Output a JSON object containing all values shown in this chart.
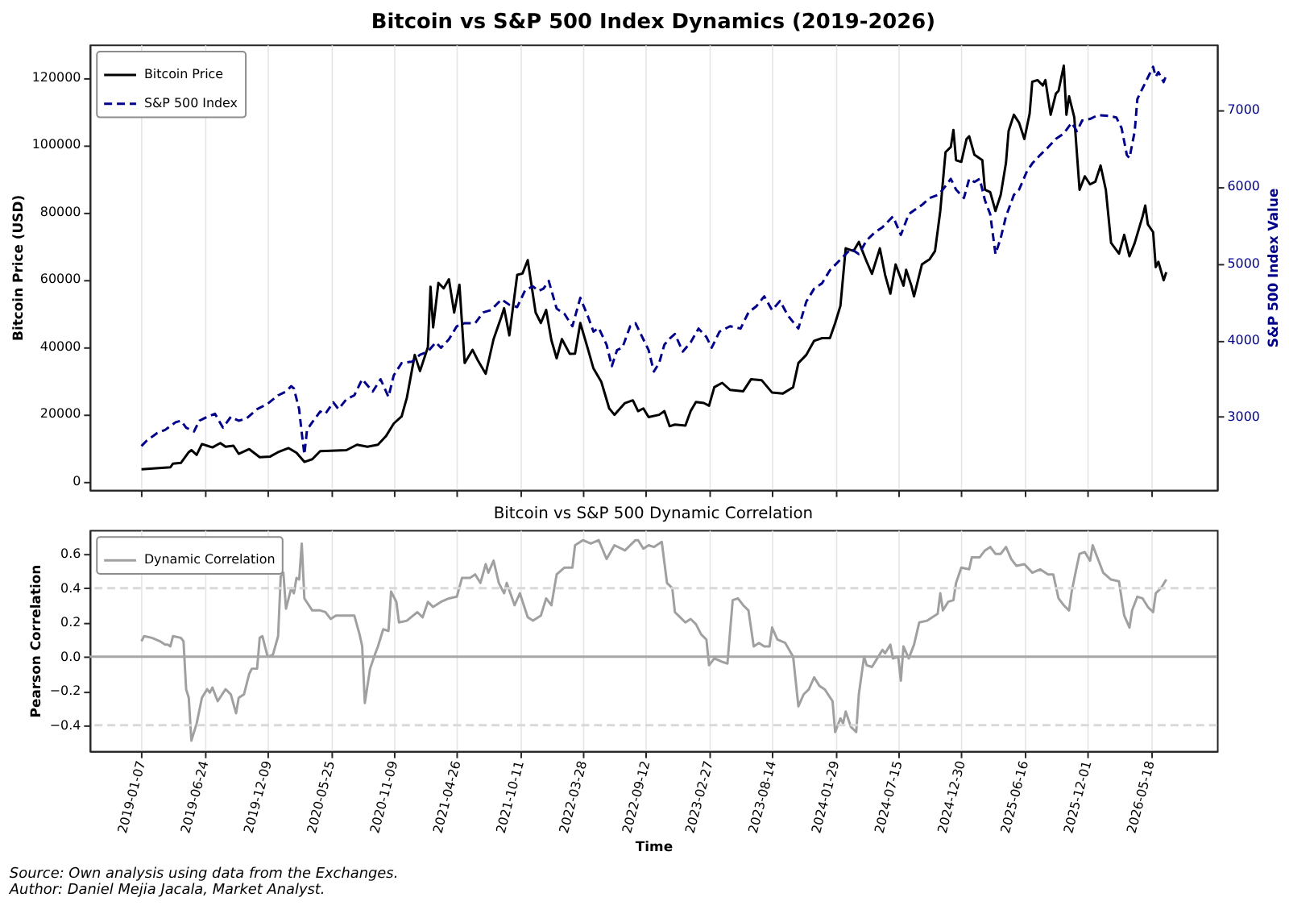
{
  "chart_data": [
    {
      "type": "line",
      "title": "Bitcoin vs S&P 500 Index Dynamics (2019-2026)",
      "ylabel": "Bitcoin Price (USD)",
      "y2label": "S&P 500 Index Value",
      "xlim": [
        "2018-08-22",
        "2026-11-11"
      ],
      "xticks": [
        "2019-01-07",
        "2019-06-24",
        "2019-12-09",
        "2020-05-25",
        "2020-11-09",
        "2021-04-26",
        "2021-10-11",
        "2022-03-28",
        "2022-09-12",
        "2023-02-27",
        "2023-08-14",
        "2024-01-29",
        "2024-07-15",
        "2024-12-30",
        "2025-06-16",
        "2025-12-01",
        "2026-05-18"
      ],
      "ylim": [
        -2600,
        129800
      ],
      "yticks": [
        0,
        20000,
        40000,
        60000,
        80000,
        100000,
        120000
      ],
      "y2lim": [
        2050,
        7850
      ],
      "y2ticks": [
        3000,
        4000,
        5000,
        6000,
        7000
      ],
      "grid": "x",
      "legend": "top left",
      "tick_labels": "y",
      "series": [
        {
          "name": "Bitcoin Price",
          "color": "#000000",
          "line_style": "solid",
          "x": [
            "2019-01-07",
            "2019-03-25",
            "2019-04-01",
            "2019-04-22",
            "2019-05-13",
            "2019-05-20",
            "2019-06-03",
            "2019-06-17",
            "2019-07-01",
            "2019-07-15",
            "2019-08-05",
            "2019-08-19",
            "2019-09-09",
            "2019-09-23",
            "2019-10-21",
            "2019-11-18",
            "2019-12-16",
            "2020-01-06",
            "2020-02-03",
            "2020-02-24",
            "2020-03-16",
            "2020-04-06",
            "2020-04-27",
            "2020-05-25",
            "2020-07-06",
            "2020-08-03",
            "2020-08-31",
            "2020-09-28",
            "2020-10-19",
            "2020-11-09",
            "2020-11-30",
            "2020-12-14",
            "2021-01-04",
            "2021-01-18",
            "2021-02-08",
            "2021-02-15",
            "2021-02-22",
            "2021-03-08",
            "2021-03-22",
            "2021-04-05",
            "2021-04-19",
            "2021-05-03",
            "2021-05-17",
            "2021-06-07",
            "2021-06-21",
            "2021-07-12",
            "2021-08-02",
            "2021-08-23",
            "2021-08-30",
            "2021-09-13",
            "2021-10-04",
            "2021-10-18",
            "2021-11-01",
            "2021-11-22",
            "2021-12-06",
            "2021-12-20",
            "2022-01-03",
            "2022-01-17",
            "2022-01-31",
            "2022-02-21",
            "2022-03-07",
            "2022-03-21",
            "2022-04-11",
            "2022-04-25",
            "2022-05-16",
            "2022-06-06",
            "2022-06-20",
            "2022-07-18",
            "2022-08-08",
            "2022-08-22",
            "2022-09-05",
            "2022-09-19",
            "2022-10-17",
            "2022-10-31",
            "2022-11-14",
            "2022-11-28",
            "2022-12-26",
            "2023-01-09",
            "2023-01-23",
            "2023-02-13",
            "2023-02-27",
            "2023-03-13",
            "2023-04-03",
            "2023-04-24",
            "2023-05-29",
            "2023-06-19",
            "2023-07-17",
            "2023-08-14",
            "2023-09-11",
            "2023-10-09",
            "2023-10-23",
            "2023-11-13",
            "2023-12-04",
            "2023-12-25",
            "2024-01-15",
            "2024-01-29",
            "2024-02-12",
            "2024-02-26",
            "2024-03-18",
            "2024-04-01",
            "2024-04-22",
            "2024-05-06",
            "2024-05-27",
            "2024-06-10",
            "2024-06-24",
            "2024-07-08",
            "2024-07-29",
            "2024-08-05",
            "2024-08-19",
            "2024-08-26",
            "2024-09-16",
            "2024-10-07",
            "2024-10-21",
            "2024-11-04",
            "2024-11-18",
            "2024-12-02",
            "2024-12-09",
            "2024-12-16",
            "2024-12-30",
            "2025-01-13",
            "2025-01-20",
            "2025-02-03",
            "2025-02-24",
            "2025-03-03",
            "2025-03-17",
            "2025-03-31",
            "2025-04-14",
            "2025-04-28",
            "2025-05-05",
            "2025-05-19",
            "2025-06-02",
            "2025-06-16",
            "2025-06-30",
            "2025-07-07",
            "2025-07-21",
            "2025-08-04",
            "2025-08-11",
            "2025-08-25",
            "2025-09-08",
            "2025-09-15",
            "2025-09-29",
            "2025-10-06",
            "2025-10-13",
            "2025-10-27",
            "2025-11-10",
            "2025-11-24",
            "2025-12-08",
            "2025-12-22",
            "2026-01-05",
            "2026-01-19",
            "2026-02-02",
            "2026-02-23",
            "2026-03-09",
            "2026-03-23",
            "2026-04-06",
            "2026-04-27",
            "2026-05-04",
            "2026-05-11",
            "2026-05-25",
            "2026-06-01",
            "2026-06-08",
            "2026-06-22",
            "2026-06-29"
          ],
          "values": [
            3500,
            4100,
            5200,
            5400,
            8600,
            9200,
            7800,
            11000,
            10500,
            10000,
            11300,
            10200,
            10500,
            8100,
            9500,
            7100,
            7300,
            8600,
            9800,
            8400,
            5700,
            6500,
            8900,
            9000,
            9200,
            10800,
            10200,
            10800,
            13300,
            17100,
            19200,
            24800,
            37500,
            32700,
            39800,
            57800,
            45700,
            58900,
            57300,
            60000,
            50100,
            58400,
            35100,
            39000,
            35900,
            31900,
            42200,
            48900,
            51400,
            43300,
            61300,
            61700,
            65700,
            50100,
            47000,
            50900,
            41900,
            36500,
            42200,
            37800,
            37900,
            47000,
            39000,
            33500,
            29500,
            21600,
            19700,
            23200,
            24000,
            20800,
            21600,
            19000,
            19700,
            20800,
            16300,
            16800,
            16500,
            20800,
            23500,
            23200,
            22400,
            27900,
            29200,
            27100,
            26700,
            30300,
            30000,
            26300,
            26000,
            27900,
            35100,
            37500,
            41700,
            42500,
            42500,
            47000,
            52100,
            69200,
            68400,
            71100,
            65200,
            61600,
            69200,
            61300,
            55700,
            64400,
            58100,
            62800,
            58100,
            54900,
            64400,
            66000,
            68400,
            80300,
            97800,
            99300,
            104400,
            95400,
            94900,
            101700,
            102500,
            97000,
            95400,
            86600,
            85900,
            80300,
            85100,
            94600,
            104100,
            108900,
            106500,
            101700,
            109200,
            118700,
            119200,
            117600,
            119200,
            108900,
            115200,
            116000,
            123500,
            108900,
            114400,
            108100,
            86600,
            90600,
            88200,
            89000,
            93800,
            86600,
            70800,
            67600,
            73200,
            66800,
            70800,
            78700,
            81900,
            76300,
            74000,
            63600,
            65200,
            59700,
            62100
          ]
        },
        {
          "name": "S&P 500 Index",
          "color": "#00008b",
          "line_style": "dashed",
          "axis": "y2",
          "x": [
            "2019-01-07",
            "2019-01-21",
            "2019-02-18",
            "2019-03-11",
            "2019-03-25",
            "2019-04-08",
            "2019-04-22",
            "2019-05-06",
            "2019-05-27",
            "2019-06-10",
            "2019-07-01",
            "2019-07-22",
            "2019-08-12",
            "2019-09-02",
            "2019-09-23",
            "2019-10-14",
            "2019-11-11",
            "2019-12-09",
            "2020-01-06",
            "2020-01-27",
            "2020-02-10",
            "2020-02-17",
            "2020-03-02",
            "2020-03-09",
            "2020-03-16",
            "2020-03-23",
            "2020-04-06",
            "2020-04-27",
            "2020-05-11",
            "2020-06-01",
            "2020-06-15",
            "2020-07-06",
            "2020-07-27",
            "2020-08-17",
            "2020-09-14",
            "2020-10-05",
            "2020-10-26",
            "2020-11-09",
            "2020-11-30",
            "2020-12-28",
            "2021-01-18",
            "2021-02-08",
            "2021-03-01",
            "2021-03-15",
            "2021-04-05",
            "2021-04-26",
            "2021-05-17",
            "2021-06-14",
            "2021-07-05",
            "2021-07-26",
            "2021-08-23",
            "2021-09-13",
            "2021-10-04",
            "2021-10-25",
            "2021-11-15",
            "2021-11-29",
            "2021-12-13",
            "2021-12-27",
            "2022-01-17",
            "2022-02-07",
            "2022-02-28",
            "2022-03-21",
            "2022-04-11",
            "2022-04-25",
            "2022-05-09",
            "2022-05-30",
            "2022-06-13",
            "2022-06-27",
            "2022-07-11",
            "2022-08-01",
            "2022-08-15",
            "2022-08-22",
            "2022-09-05",
            "2022-09-19",
            "2022-10-03",
            "2022-10-17",
            "2022-10-31",
            "2022-11-14",
            "2022-11-28",
            "2022-12-19",
            "2023-01-09",
            "2023-01-30",
            "2023-02-20",
            "2023-03-06",
            "2023-03-27",
            "2023-04-24",
            "2023-05-22",
            "2023-06-12",
            "2023-07-03",
            "2023-07-24",
            "2023-08-14",
            "2023-09-04",
            "2023-09-25",
            "2023-10-23",
            "2023-11-13",
            "2023-12-04",
            "2023-12-25",
            "2024-01-15",
            "2024-02-12",
            "2024-03-11",
            "2024-04-01",
            "2024-04-22",
            "2024-05-13",
            "2024-06-03",
            "2024-07-01",
            "2024-07-22",
            "2024-08-12",
            "2024-09-16",
            "2024-10-07",
            "2024-10-28",
            "2024-11-11",
            "2024-12-02",
            "2024-12-16",
            "2025-01-06",
            "2025-01-20",
            "2025-02-03",
            "2025-02-17",
            "2025-03-03",
            "2025-03-17",
            "2025-03-31",
            "2025-04-14",
            "2025-04-28",
            "2025-05-19",
            "2025-06-02",
            "2025-06-23",
            "2025-07-07",
            "2025-07-28",
            "2025-08-18",
            "2025-09-08",
            "2025-09-29",
            "2025-10-20",
            "2025-11-03",
            "2025-11-17",
            "2025-12-08",
            "2025-12-29",
            "2026-01-26",
            "2026-02-16",
            "2026-03-02",
            "2026-03-16",
            "2026-03-23",
            "2026-04-06",
            "2026-04-13",
            "2026-04-27",
            "2026-05-11",
            "2026-05-25",
            "2026-06-01",
            "2026-06-08",
            "2026-06-22",
            "2026-06-29"
          ],
          "values": [
            2620,
            2690,
            2790,
            2830,
            2880,
            2930,
            2950,
            2860,
            2810,
            2950,
            3000,
            3040,
            2860,
            3000,
            2950,
            2980,
            3100,
            3170,
            3280,
            3330,
            3400,
            3370,
            3100,
            2790,
            2510,
            2830,
            2930,
            3070,
            3040,
            3190,
            3100,
            3230,
            3280,
            3490,
            3330,
            3490,
            3260,
            3540,
            3700,
            3720,
            3810,
            3850,
            3970,
            3900,
            4010,
            4180,
            4220,
            4220,
            4360,
            4390,
            4530,
            4460,
            4430,
            4650,
            4700,
            4640,
            4670,
            4770,
            4410,
            4340,
            4180,
            4550,
            4300,
            4110,
            4160,
            3940,
            3660,
            3870,
            3900,
            4180,
            4220,
            4150,
            4010,
            3870,
            3590,
            3700,
            3940,
            4020,
            4080,
            3850,
            3970,
            4150,
            4040,
            3900,
            4110,
            4180,
            4150,
            4360,
            4440,
            4570,
            4390,
            4510,
            4320,
            4150,
            4500,
            4670,
            4740,
            4910,
            5050,
            5190,
            5120,
            5300,
            5400,
            5470,
            5610,
            5370,
            5640,
            5760,
            5850,
            5890,
            5960,
            6100,
            5960,
            5850,
            6100,
            6060,
            6100,
            5820,
            5640,
            5120,
            5330,
            5610,
            5890,
            5960,
            6200,
            6300,
            6410,
            6510,
            6620,
            6690,
            6830,
            6720,
            6860,
            6880,
            6930,
            6920,
            6900,
            6760,
            6410,
            6370,
            6720,
            7140,
            7280,
            7420,
            7560,
            7430,
            7490,
            7360,
            7450
          ]
        }
      ]
    },
    {
      "type": "line",
      "title": "Bitcoin vs S&P 500 Dynamic Correlation",
      "xlabel": "Time",
      "ylabel": "Pearson Correlation",
      "xlim": [
        "2018-08-22",
        "2026-11-11"
      ],
      "xticks": [
        "2019-01-07",
        "2019-06-24",
        "2019-12-09",
        "2020-05-25",
        "2020-11-09",
        "2021-04-26",
        "2021-10-11",
        "2022-03-28",
        "2022-09-12",
        "2023-02-27",
        "2023-08-14",
        "2024-01-29",
        "2024-07-15",
        "2024-12-30",
        "2025-06-16",
        "2025-12-01",
        "2026-05-18"
      ],
      "ylim": [
        -0.55,
        0.74
      ],
      "yticks": [
        -0.4,
        -0.2,
        {
          "value": 0,
          "label": "0.0"
        },
        0.2,
        0.4,
        0.6
      ],
      "grid": "x",
      "legend": "top left",
      "ref_lines": [
        {
          "axis": "y",
          "value": 0,
          "color": "#a6a6a6",
          "line_style": "solid"
        },
        {
          "axis": "y",
          "value": 0.4,
          "color": "#d9d9d9",
          "line_style": "dashed"
        },
        {
          "axis": "y",
          "value": -0.4,
          "color": "#d9d9d9",
          "line_style": "dashed"
        }
      ],
      "annotations": [
        "Source: Own analysis using data from the Exchanges.",
        "Author: Daniel Mejia Jacala, Market Analyst."
      ],
      "series": [
        {
          "name": "Dynamic Correlation",
          "color": "#a0a0a0",
          "line_style": "solid",
          "x": [
            "2019-01-07",
            "2019-01-14",
            "2019-02-04",
            "2019-02-25",
            "2019-03-11",
            "2019-03-18",
            "2019-03-25",
            "2019-04-01",
            "2019-04-22",
            "2019-04-29",
            "2019-05-06",
            "2019-05-13",
            "2019-05-20",
            "2019-06-03",
            "2019-06-17",
            "2019-07-01",
            "2019-07-08",
            "2019-07-15",
            "2019-07-29",
            "2019-08-19",
            "2019-09-02",
            "2019-09-16",
            "2019-09-23",
            "2019-10-07",
            "2019-10-21",
            "2019-10-28",
            "2019-11-11",
            "2019-11-18",
            "2019-11-25",
            "2019-12-09",
            "2019-12-23",
            "2020-01-06",
            "2020-01-13",
            "2020-01-20",
            "2020-01-27",
            "2020-02-10",
            "2020-02-17",
            "2020-02-24",
            "2020-03-02",
            "2020-03-09",
            "2020-03-16",
            "2020-04-06",
            "2020-04-27",
            "2020-05-11",
            "2020-05-25",
            "2020-06-08",
            "2020-07-06",
            "2020-07-27",
            "2020-08-10",
            "2020-08-17",
            "2020-08-24",
            "2020-09-07",
            "2020-09-21",
            "2020-09-28",
            "2020-10-12",
            "2020-10-26",
            "2020-11-02",
            "2020-11-16",
            "2020-11-23",
            "2020-12-14",
            "2021-01-11",
            "2021-01-25",
            "2021-02-08",
            "2021-02-22",
            "2021-03-15",
            "2021-04-05",
            "2021-04-26",
            "2021-05-10",
            "2021-05-31",
            "2021-06-14",
            "2021-06-28",
            "2021-07-12",
            "2021-07-19",
            "2021-08-02",
            "2021-08-16",
            "2021-08-30",
            "2021-09-06",
            "2021-09-27",
            "2021-10-11",
            "2021-11-01",
            "2021-11-15",
            "2021-12-06",
            "2021-12-20",
            "2022-01-03",
            "2022-01-17",
            "2022-02-07",
            "2022-02-28",
            "2022-03-07",
            "2022-03-28",
            "2022-04-18",
            "2022-05-09",
            "2022-05-30",
            "2022-06-20",
            "2022-07-18",
            "2022-08-15",
            "2022-08-22",
            "2022-09-05",
            "2022-09-19",
            "2022-10-03",
            "2022-10-24",
            "2022-11-07",
            "2022-11-21",
            "2022-11-28",
            "2022-12-12",
            "2022-12-26",
            "2023-01-09",
            "2023-01-23",
            "2023-02-06",
            "2023-02-20",
            "2023-02-27",
            "2023-03-13",
            "2023-04-03",
            "2023-04-17",
            "2023-05-01",
            "2023-05-15",
            "2023-05-29",
            "2023-06-12",
            "2023-06-26",
            "2023-07-10",
            "2023-07-24",
            "2023-08-07",
            "2023-08-14",
            "2023-08-28",
            "2023-09-18",
            "2023-10-09",
            "2023-10-23",
            "2023-11-06",
            "2023-11-20",
            "2023-12-04",
            "2023-12-18",
            "2024-01-01",
            "2024-01-22",
            "2024-01-29",
            "2024-02-12",
            "2024-02-19",
            "2024-02-26",
            "2024-03-11",
            "2024-03-25",
            "2024-04-01",
            "2024-04-15",
            "2024-04-22",
            "2024-05-06",
            "2024-05-20",
            "2024-06-03",
            "2024-06-10",
            "2024-06-24",
            "2024-07-01",
            "2024-07-15",
            "2024-07-22",
            "2024-07-29",
            "2024-08-12",
            "2024-08-26",
            "2024-09-09",
            "2024-09-30",
            "2024-10-14",
            "2024-10-28",
            "2024-11-04",
            "2024-11-11",
            "2024-11-25",
            "2024-12-09",
            "2024-12-16",
            "2024-12-30",
            "2025-01-20",
            "2025-01-27",
            "2025-02-17",
            "2025-03-03",
            "2025-03-17",
            "2025-03-31",
            "2025-04-14",
            "2025-04-28",
            "2025-05-12",
            "2025-05-26",
            "2025-06-16",
            "2025-07-07",
            "2025-07-28",
            "2025-08-18",
            "2025-09-01",
            "2025-09-15",
            "2025-09-29",
            "2025-10-13",
            "2025-10-20",
            "2025-11-03",
            "2025-11-10",
            "2025-11-24",
            "2025-12-08",
            "2025-12-15",
            "2025-12-29",
            "2026-01-12",
            "2026-02-02",
            "2026-02-23",
            "2026-03-09",
            "2026-03-23",
            "2026-03-30",
            "2026-04-13",
            "2026-04-27",
            "2026-05-11",
            "2026-05-25",
            "2026-06-01",
            "2026-06-15",
            "2026-06-29"
          ],
          "values": [
            0.09,
            0.12,
            0.11,
            0.09,
            0.07,
            0.07,
            0.06,
            0.12,
            0.11,
            0.09,
            -0.19,
            -0.24,
            -0.49,
            -0.39,
            -0.24,
            -0.19,
            -0.21,
            -0.18,
            -0.26,
            -0.19,
            -0.22,
            -0.33,
            -0.24,
            -0.22,
            -0.1,
            -0.07,
            -0.07,
            0.11,
            0.12,
            0.0,
            0.01,
            0.12,
            0.47,
            0.49,
            0.28,
            0.4,
            0.37,
            0.46,
            0.45,
            0.66,
            0.34,
            0.27,
            0.27,
            0.26,
            0.22,
            0.24,
            0.24,
            0.24,
            0.13,
            0.06,
            -0.27,
            -0.07,
            0.02,
            0.06,
            0.16,
            0.15,
            0.38,
            0.32,
            0.2,
            0.21,
            0.26,
            0.23,
            0.32,
            0.29,
            0.32,
            0.34,
            0.35,
            0.46,
            0.46,
            0.48,
            0.43,
            0.54,
            0.49,
            0.56,
            0.43,
            0.37,
            0.43,
            0.3,
            0.37,
            0.23,
            0.21,
            0.24,
            0.34,
            0.3,
            0.48,
            0.52,
            0.52,
            0.65,
            0.68,
            0.66,
            0.68,
            0.57,
            0.65,
            0.62,
            0.68,
            0.68,
            0.63,
            0.65,
            0.64,
            0.67,
            0.43,
            0.4,
            0.26,
            0.23,
            0.2,
            0.22,
            0.19,
            0.13,
            0.1,
            -0.05,
            -0.01,
            -0.03,
            -0.04,
            0.33,
            0.34,
            0.3,
            0.27,
            0.06,
            0.08,
            0.06,
            0.06,
            0.17,
            0.1,
            0.08,
            0.0,
            -0.29,
            -0.22,
            -0.19,
            -0.12,
            -0.17,
            -0.19,
            -0.26,
            -0.44,
            -0.36,
            -0.39,
            -0.32,
            -0.41,
            -0.44,
            -0.22,
            0.0,
            -0.05,
            -0.06,
            -0.01,
            0.04,
            0.02,
            0.07,
            -0.01,
            0.0,
            -0.14,
            0.06,
            -0.01,
            0.07,
            0.2,
            0.21,
            0.23,
            0.25,
            0.37,
            0.27,
            0.32,
            0.33,
            0.43,
            0.52,
            0.51,
            0.58,
            0.58,
            0.62,
            0.64,
            0.6,
            0.6,
            0.64,
            0.57,
            0.53,
            0.54,
            0.49,
            0.51,
            0.48,
            0.48,
            0.34,
            0.3,
            0.27,
            0.38,
            0.53,
            0.6,
            0.61,
            0.56,
            0.65,
            0.57,
            0.49,
            0.45,
            0.44,
            0.24,
            0.17,
            0.27,
            0.35,
            0.34,
            0.29,
            0.26,
            0.37,
            0.4,
            0.45
          ]
        }
      ]
    }
  ]
}
